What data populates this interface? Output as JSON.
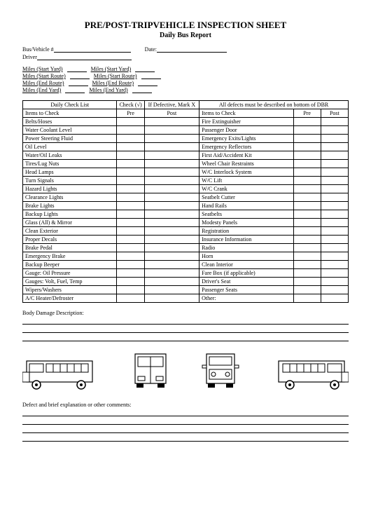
{
  "title": "PRE/POST-TRIPVEHICLE INSPECTION SHEET",
  "subtitle": "Daily Bus Report",
  "fields": {
    "bus_vehicle": "Bus/Vehicle #",
    "date": "Date:",
    "driver": "Driver"
  },
  "miles": {
    "r1a": "Miles (Start Yard)",
    "r1b": "Miles (Start Yard)",
    "r2a": "Miles (Start Route)",
    "r2b": "Miles (Start Route)",
    "r3a": "Miles (End Route)",
    "r3b": "Miles (End Route)",
    "r4a": "Miles (End Yard)",
    "r4b": "Miles (End Yard)"
  },
  "table": {
    "h1": "Daily Check List",
    "h2": "Check (√)",
    "h3": "If Defective, Mark X",
    "h4": "All defects must be described on bottom of DBR",
    "sub_items": "Items to Check",
    "sub_pre": "Pre",
    "sub_post": "Post",
    "left": [
      "Belts/Hoses",
      "Water Coolant Level",
      "Power Steering Fluid",
      "Oil Level",
      "Water/Oil Leaks",
      "Tires/Lug Nuts",
      "Head Lamps",
      "Turn Signals",
      "Hazard Lights",
      "Clearance Lights",
      "Brake Lights",
      "Backup Lights",
      "Glass (All) & Mirror",
      "Clean Exterior",
      "Proper Decals",
      "Brake Pedal",
      "Emergency Brake",
      "Backup Beeper",
      "Gauge: Oil Pressure",
      "Gauges: Volt, Fuel, Temp",
      "Wipers/Washers",
      "A/C Heater/Defroster"
    ],
    "right": [
      "Fire Extinguisher",
      "Passenger Door",
      "Emergency Exits/Lights",
      "Emergency Reflectors",
      "First Aid/Accident Kit",
      "Wheel Chair Restraints",
      "W/C Interlock System",
      "W/C Lift",
      "W/C Crank",
      "Seatbelt Cutter",
      "Hand Rails",
      "Seatbelts",
      "Modesty Panels",
      "Registration",
      "Insurance Information",
      "Radio",
      "Horn",
      "Clean Interior",
      "Fare Box (if applicable)",
      "Driver's Seat",
      "Passenger Seats",
      "Other:"
    ]
  },
  "body_damage_label": "Body Damage Description:",
  "defect_label": "Defect and brief explanation or other comments:",
  "colors": {
    "line": "#000000",
    "bg": "#ffffff"
  }
}
